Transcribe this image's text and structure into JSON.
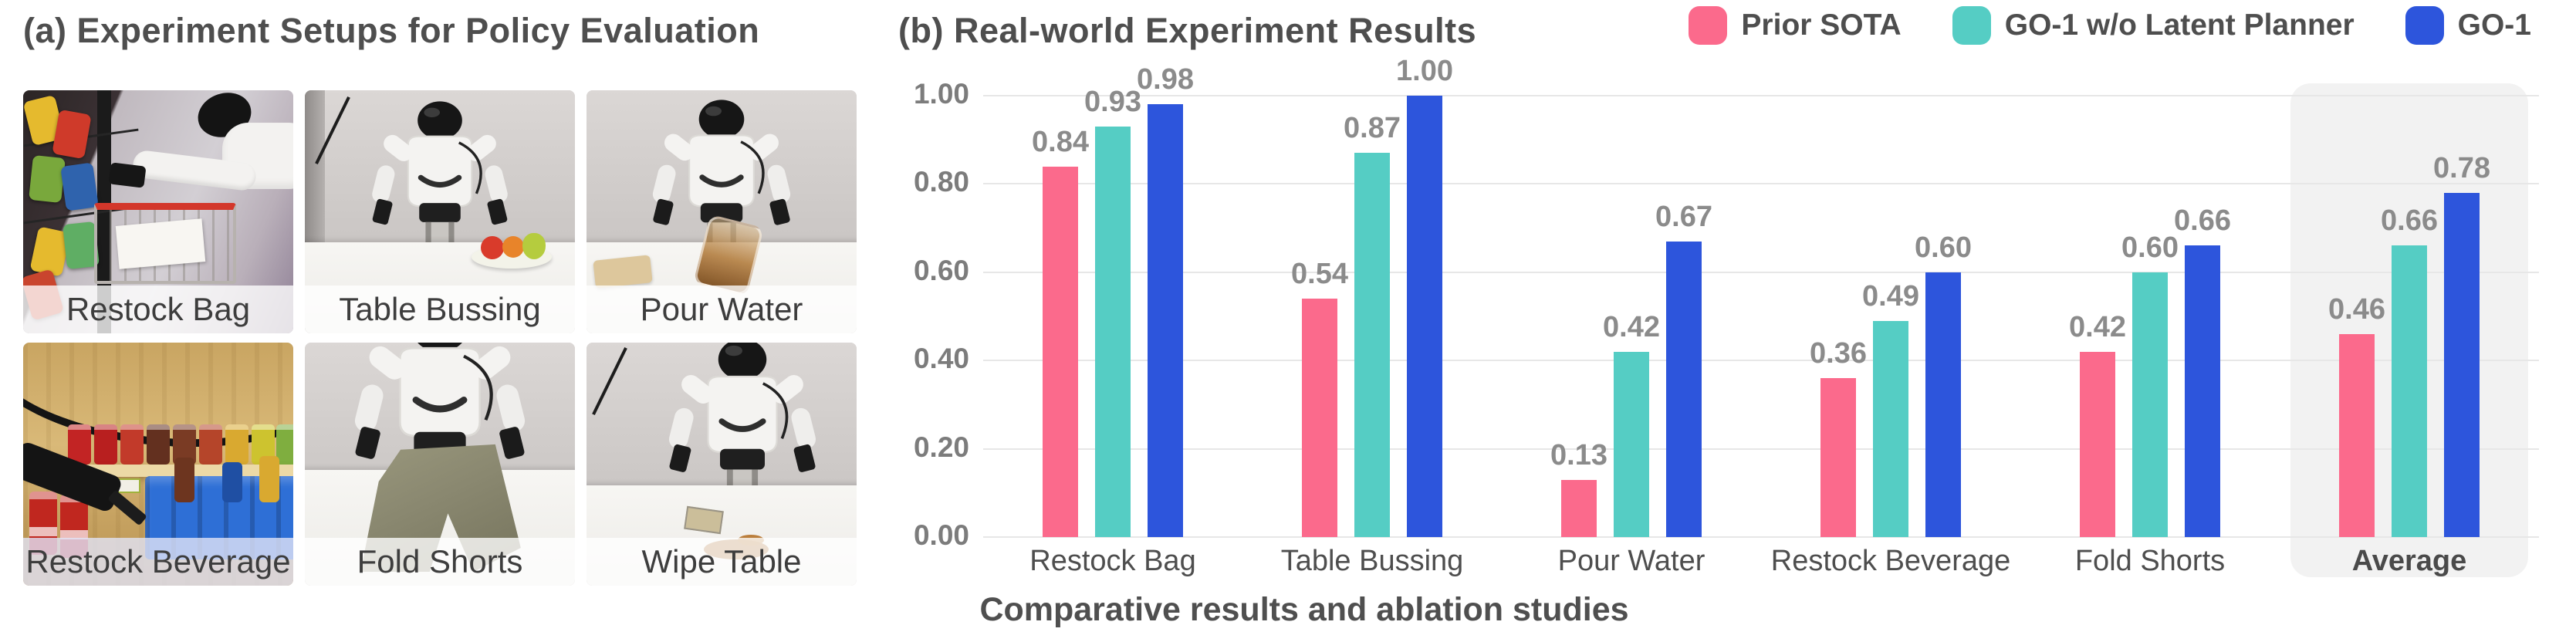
{
  "panel_a": {
    "title": "(a) Experiment Setups for Policy Evaluation",
    "photos": [
      {
        "label": "Restock Bag"
      },
      {
        "label": "Table Bussing"
      },
      {
        "label": "Pour Water"
      },
      {
        "label": "Restock Beverage"
      },
      {
        "label": "Fold Shorts"
      },
      {
        "label": "Wipe Table"
      }
    ]
  },
  "panel_b": {
    "title": "(b) Real-world Experiment Results",
    "caption": "Comparative results and ablation studies"
  },
  "legend": [
    {
      "label": "Prior SOTA",
      "color": "#FB6A8C"
    },
    {
      "label": "GO-1 w/o Latent Planner",
      "color": "#55CDC4"
    },
    {
      "label": "GO-1",
      "color": "#2D55DC"
    }
  ],
  "colors": {
    "grid_line": "#E7E7E7",
    "average_highlight": "#F2F2F2",
    "value_label": "#8B8B8B",
    "axis_text": "#7C7C7C"
  },
  "chart_data": {
    "type": "bar",
    "title": "(b) Real-world Experiment Results",
    "categories": [
      "Restock Bag",
      "Table Bussing",
      "Pour Water",
      "Restock Beverage",
      "Fold Shorts",
      "Average"
    ],
    "series": [
      {
        "name": "Prior SOTA",
        "color": "#FB6A8C",
        "values": [
          0.84,
          0.54,
          0.13,
          0.36,
          0.42,
          0.46
        ]
      },
      {
        "name": "GO-1 w/o Latent Planner",
        "color": "#55CDC4",
        "values": [
          0.93,
          0.87,
          0.42,
          0.49,
          0.6,
          0.66
        ]
      },
      {
        "name": "GO-1",
        "color": "#2D55DC",
        "values": [
          0.98,
          1.0,
          0.67,
          0.6,
          0.66,
          0.78
        ]
      }
    ],
    "ylim": [
      0,
      1.0
    ],
    "yticks": [
      "1.00",
      "0.80",
      "0.60",
      "0.40",
      "0.20",
      "0.00"
    ],
    "grid": true,
    "legend_position": "top-right",
    "highlight_category": "Average",
    "value_labels": "2dp"
  }
}
